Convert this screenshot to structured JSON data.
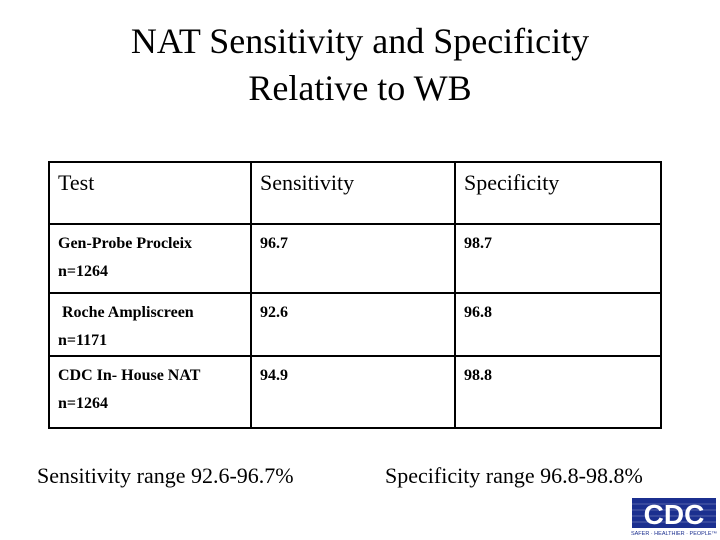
{
  "title": {
    "line1": "NAT Sensitivity and Specificity",
    "line2": "Relative to WB"
  },
  "table": {
    "headers": [
      "Test",
      "Sensitivity",
      "Specificity"
    ],
    "rows": [
      {
        "name": "Gen-Probe Procleix",
        "n": "n=1264",
        "sensitivity": "96.7",
        "specificity": "98.7"
      },
      {
        "name": "Roche Ampliscreen",
        "n": "n=1171",
        "sensitivity": "92.6",
        "specificity": "96.8"
      },
      {
        "name": "CDC In- House NAT",
        "n": "n=1264",
        "sensitivity": "94.9",
        "specificity": "98.8"
      }
    ]
  },
  "ranges": {
    "sensitivity": "Sensitivity range 92.6-96.7%",
    "specificity": "Specificity range 96.8-98.8%"
  },
  "logo": {
    "text": "CDC",
    "tagline": "SAFER · HEALTHIER · PEOPLE™",
    "color": "#1b2f8f"
  }
}
